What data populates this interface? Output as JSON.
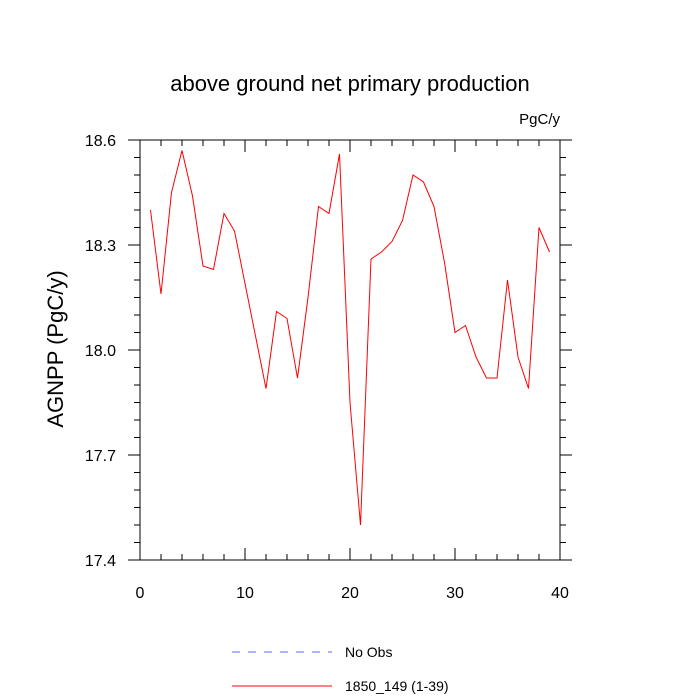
{
  "chart_data": {
    "type": "line",
    "title": "above ground net primary production",
    "units_label": "PgC/y",
    "xlabel": "",
    "ylabel": "AGNPP  (PgC/y)",
    "xlim": [
      0,
      40
    ],
    "ylim": [
      17.4,
      18.6
    ],
    "x_ticks": [
      0,
      10,
      20,
      30,
      40
    ],
    "y_ticks": [
      17.4,
      17.7,
      18.0,
      18.3,
      18.6
    ],
    "x_tick_labels": [
      "0",
      "10",
      "20",
      "30",
      "40"
    ],
    "y_tick_labels": [
      "17.4",
      "17.7",
      "18.0",
      "18.3",
      "18.6"
    ],
    "grid": false,
    "legend_position": "bottom-center",
    "series": [
      {
        "name": "1850_149 (1-39)",
        "color": "#ff0000",
        "style": "solid",
        "x": [
          1,
          2,
          3,
          4,
          5,
          6,
          7,
          8,
          9,
          10,
          11,
          12,
          13,
          14,
          15,
          16,
          17,
          18,
          19,
          20,
          21,
          22,
          23,
          24,
          25,
          26,
          27,
          28,
          29,
          30,
          31,
          32,
          33,
          34,
          35,
          36,
          37,
          38,
          39
        ],
        "values": [
          18.4,
          18.16,
          18.45,
          18.57,
          18.44,
          18.24,
          18.23,
          18.39,
          18.34,
          18.19,
          18.04,
          17.89,
          18.11,
          18.09,
          17.92,
          18.15,
          18.41,
          18.39,
          18.56,
          17.85,
          17.5,
          18.26,
          18.28,
          18.31,
          18.37,
          18.5,
          18.48,
          18.41,
          18.25,
          18.05,
          18.07,
          17.98,
          17.92,
          17.92,
          18.2,
          17.98,
          17.89,
          18.35,
          18.28
        ]
      }
    ],
    "legend": [
      {
        "name": "No Obs",
        "color": "#6666ff",
        "style": "dashed"
      },
      {
        "name": "1850_149 (1-39)",
        "color": "#ff0000",
        "style": "solid"
      }
    ]
  }
}
